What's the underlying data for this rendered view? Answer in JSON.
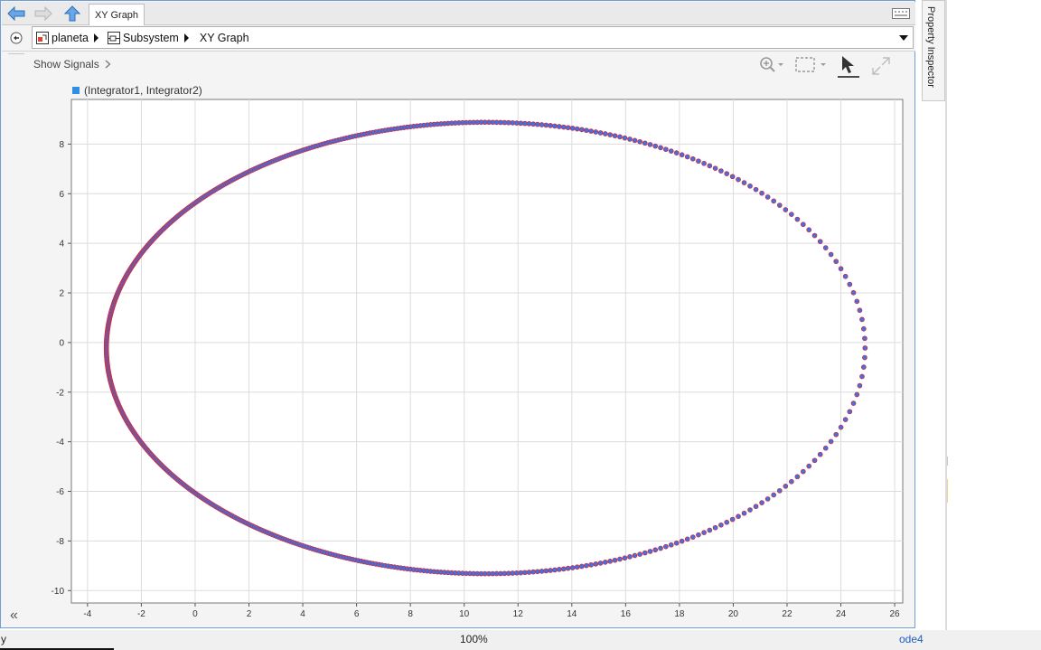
{
  "tab": {
    "title": "XY Graph"
  },
  "breadcrumb": {
    "items": [
      {
        "label": "planeta",
        "icon": "model-icon"
      },
      {
        "label": "Subsystem",
        "icon": "subsystem-icon"
      },
      {
        "label": "XY Graph",
        "icon": ""
      }
    ]
  },
  "toolbar": {
    "show_signals": "Show Signals"
  },
  "legend": {
    "label": "(Integrator1, Integrator2)",
    "color": "#2f8fe3"
  },
  "side_panel": {
    "label": "Property Inspector"
  },
  "status": {
    "left": "y",
    "zoom": "100%",
    "solver": "ode4"
  },
  "chart_data": {
    "type": "scatter",
    "title": "",
    "xlabel": "",
    "ylabel": "",
    "xlim": [
      -4.6,
      26.3
    ],
    "ylim": [
      -10.5,
      9.8
    ],
    "xticks": [
      -4,
      -2,
      0,
      2,
      4,
      6,
      8,
      10,
      12,
      14,
      16,
      18,
      20,
      22,
      24,
      26
    ],
    "yticks": [
      -10,
      -8,
      -6,
      -4,
      -2,
      0,
      2,
      4,
      6,
      8
    ],
    "grid": true,
    "series": [
      {
        "name": "(Integrator1, Integrator2)",
        "marker_fill": "#3d73e6",
        "marker_edge": "#c0334d",
        "orbit": {
          "semi_major": 14.1,
          "eccentricity": 0.762,
          "perihelion_x": 24.9,
          "y_scale": 9.1
        }
      }
    ]
  }
}
